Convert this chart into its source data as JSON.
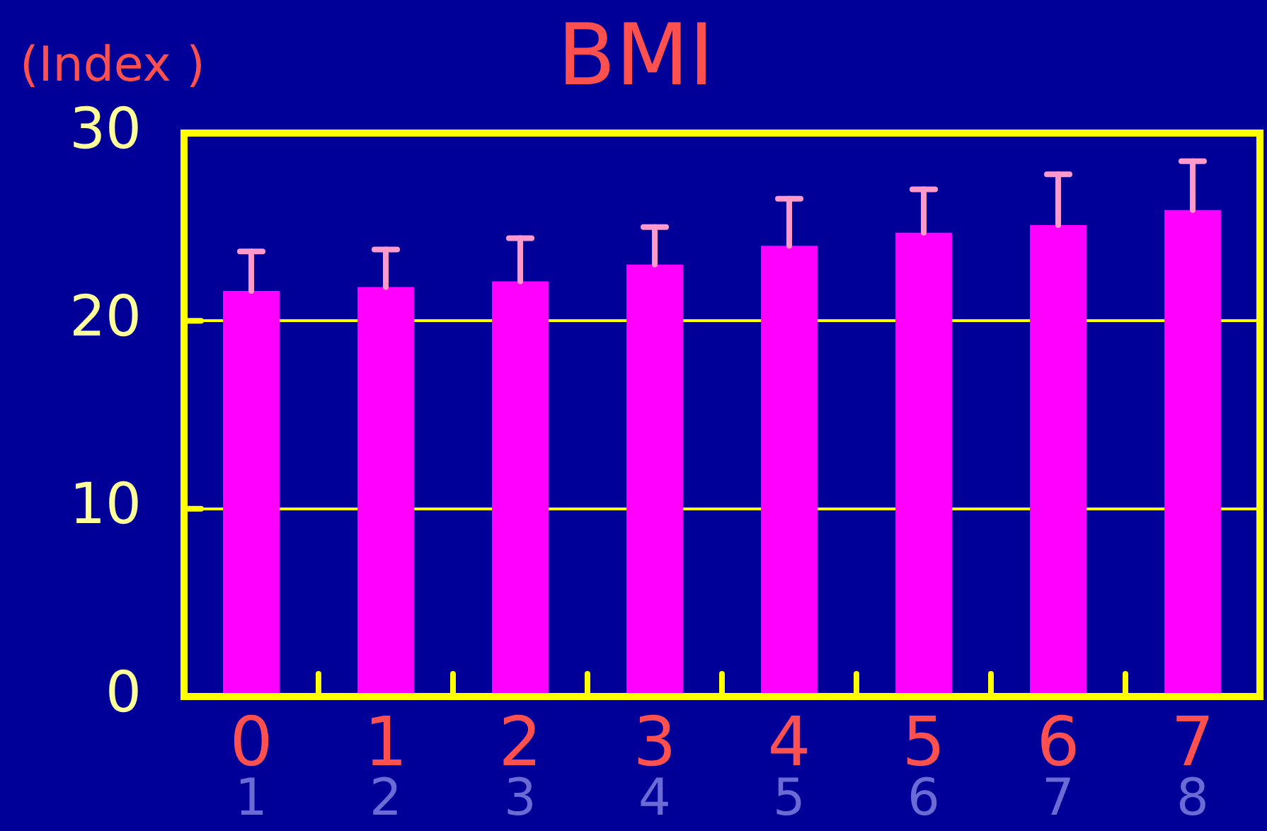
{
  "chart_data": {
    "type": "bar",
    "title": "BMI",
    "ylabel": "(Index )",
    "categories": [
      "0\n1",
      "1\n2",
      "2\n3",
      "3\n4",
      "4\n5",
      "5\n6",
      "6\n7",
      "7\n8"
    ],
    "values": [
      21.6,
      21.8,
      22.1,
      23.0,
      24.0,
      24.7,
      25.1,
      25.9
    ],
    "errors": [
      [
        21.6,
        23.7
      ],
      [
        21.8,
        23.8
      ],
      [
        22.1,
        24.4
      ],
      [
        23.0,
        25.0
      ],
      [
        24.0,
        26.5
      ],
      [
        24.7,
        27.0
      ],
      [
        25.1,
        27.8
      ],
      [
        25.9,
        28.5
      ]
    ],
    "color": "#ff00ff",
    "ylim": [
      0,
      30
    ],
    "yticks": [
      0,
      10,
      20,
      30
    ],
    "grid": "y",
    "legend": false
  }
}
